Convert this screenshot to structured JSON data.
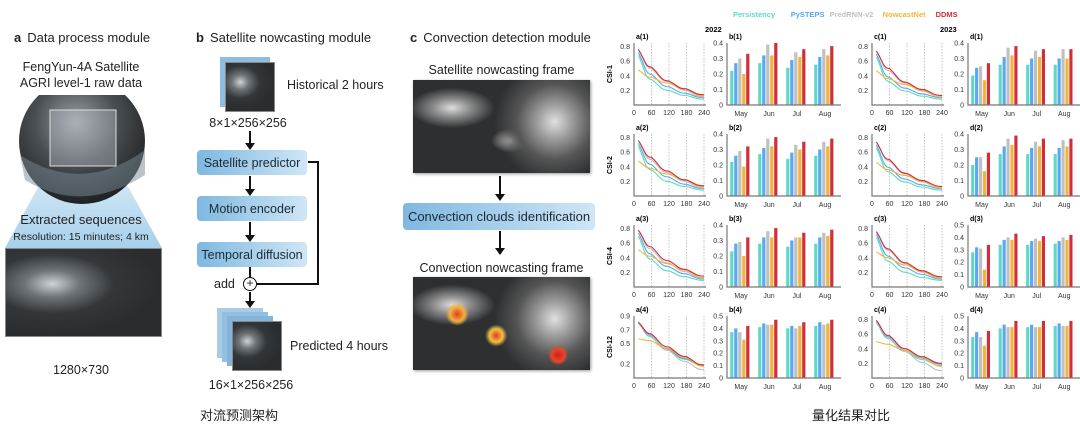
{
  "panel_a": {
    "letter": "a",
    "title": "Data process module",
    "source_line1": "FengYun-4A Satellite",
    "source_line2": "AGRI level-1 raw data",
    "extracted": "Extracted sequences",
    "resolution": "Resolution: 15 minutes; 4 km",
    "size": "1280×730"
  },
  "panel_b": {
    "letter": "b",
    "title": "Satellite nowcasting module",
    "input_label": "Historical 2 hours",
    "input_shape": "8×1×256×256",
    "steps": [
      "Satellite predictor",
      "Motion encoder",
      "Temporal diffusion"
    ],
    "add_label": "add",
    "add_symbol": "+",
    "output_label": "Predicted 4 hours",
    "output_shape": "16×1×256×256"
  },
  "panel_c": {
    "letter": "c",
    "title": "Convection detection module",
    "frame1": "Satellite nowcasting frame",
    "step": "Convection clouds identification",
    "frame2": "Convection nowcasting frame"
  },
  "captions": {
    "left": "对流预测架构",
    "right": "量化结果对比"
  },
  "chart_data": {
    "type": "line+bar grid",
    "legend": [
      {
        "name": "Persistency",
        "color": "#5fd8c6"
      },
      {
        "name": "PySTEPS",
        "color": "#5aa8f0"
      },
      {
        "name": "PredRNN-v2",
        "color": "#c0c0c0"
      },
      {
        "name": "NowcastNet",
        "color": "#f3b43a"
      },
      {
        "name": "DDMS",
        "color": "#d42d3a"
      }
    ],
    "legend_position": "top",
    "years": [
      "2022",
      "2023"
    ],
    "row_labels": [
      "CSI-1",
      "CSI-2",
      "CSI-4",
      "CSI-12"
    ],
    "line_x": [
      15,
      60,
      120,
      180,
      240
    ],
    "line_xticks": [
      "0",
      "60",
      "120",
      "180",
      "240"
    ],
    "bar_categories": [
      "May",
      "Jun",
      "Jul",
      "Aug"
    ],
    "rows": [
      {
        "a": {
          "title": "a(1)",
          "ylim": [
            0,
            0.85
          ],
          "yticks": [
            "0.2",
            "0.4",
            "0.6",
            "0.8"
          ],
          "ytick_values": [
            0.2,
            0.4,
            0.6,
            0.8
          ],
          "series": [
            [
              0.68,
              0.35,
              0.2,
              0.13,
              0.08
            ],
            [
              0.72,
              0.42,
              0.25,
              0.16,
              0.1
            ],
            [
              0.76,
              0.5,
              0.32,
              0.2,
              0.11
            ],
            [
              0.48,
              0.38,
              0.3,
              0.22,
              0.12
            ],
            [
              0.76,
              0.52,
              0.33,
              0.22,
              0.14
            ]
          ]
        },
        "b": {
          "title": "b(1)",
          "ylim": [
            0,
            0.4
          ],
          "yticks": [
            "0",
            "0.1",
            "0.2",
            "0.3",
            "0.4"
          ],
          "ytick_values": [
            0,
            0.1,
            0.2,
            0.3,
            0.4
          ],
          "values": [
            [
              0.22,
              0.27,
              0.3,
              0.2,
              0.33
            ],
            [
              0.27,
              0.32,
              0.39,
              0.32,
              0.4
            ],
            [
              0.24,
              0.29,
              0.34,
              0.31,
              0.36
            ],
            [
              0.26,
              0.31,
              0.36,
              0.32,
              0.38
            ]
          ]
        },
        "c": {
          "title": "c(1)",
          "ylim": [
            0,
            0.85
          ],
          "yticks": [
            "0.2",
            "0.4",
            "0.6",
            "0.8"
          ],
          "ytick_values": [
            0.2,
            0.4,
            0.6,
            0.8
          ],
          "series": [
            [
              0.66,
              0.32,
              0.19,
              0.12,
              0.08
            ],
            [
              0.7,
              0.38,
              0.23,
              0.15,
              0.1
            ],
            [
              0.74,
              0.47,
              0.3,
              0.19,
              0.11
            ],
            [
              0.47,
              0.36,
              0.28,
              0.2,
              0.11
            ],
            [
              0.74,
              0.5,
              0.31,
              0.21,
              0.13
            ]
          ]
        },
        "d": {
          "title": "d(1)",
          "ylim": [
            0,
            0.4
          ],
          "yticks": [
            "0",
            "0.1",
            "0.2",
            "0.3",
            "0.4"
          ],
          "ytick_values": [
            0,
            0.1,
            0.2,
            0.3,
            0.4
          ],
          "values": [
            [
              0.19,
              0.24,
              0.25,
              0.16,
              0.27
            ],
            [
              0.26,
              0.31,
              0.37,
              0.32,
              0.38
            ],
            [
              0.26,
              0.3,
              0.35,
              0.31,
              0.36
            ],
            [
              0.26,
              0.3,
              0.36,
              0.3,
              0.36
            ]
          ]
        }
      },
      {
        "a": {
          "title": "a(2)",
          "ylim": [
            0,
            0.85
          ],
          "yticks": [
            "0.2",
            "0.4",
            "0.6",
            "0.8"
          ],
          "ytick_values": [
            0.2,
            0.4,
            0.6,
            0.8
          ],
          "series": [
            [
              0.68,
              0.36,
              0.2,
              0.13,
              0.08
            ],
            [
              0.72,
              0.43,
              0.26,
              0.16,
              0.1
            ],
            [
              0.76,
              0.5,
              0.32,
              0.2,
              0.11
            ],
            [
              0.48,
              0.38,
              0.3,
              0.22,
              0.12
            ],
            [
              0.76,
              0.53,
              0.34,
              0.22,
              0.14
            ]
          ]
        },
        "b": {
          "title": "b(2)",
          "ylim": [
            0,
            0.4
          ],
          "yticks": [
            "0",
            "0.1",
            "0.2",
            "0.3",
            "0.4"
          ],
          "ytick_values": [
            0,
            0.1,
            0.2,
            0.3,
            0.4
          ],
          "values": [
            [
              0.22,
              0.26,
              0.29,
              0.19,
              0.32
            ],
            [
              0.27,
              0.31,
              0.37,
              0.32,
              0.38
            ],
            [
              0.24,
              0.28,
              0.33,
              0.3,
              0.35
            ],
            [
              0.26,
              0.3,
              0.35,
              0.32,
              0.37
            ]
          ]
        },
        "c": {
          "title": "c(2)",
          "ylim": [
            0,
            0.85
          ],
          "yticks": [
            "0.2",
            "0.4",
            "0.6",
            "0.8"
          ],
          "ytick_values": [
            0.2,
            0.4,
            0.6,
            0.8
          ],
          "series": [
            [
              0.66,
              0.33,
              0.19,
              0.12,
              0.08
            ],
            [
              0.7,
              0.39,
              0.23,
              0.15,
              0.1
            ],
            [
              0.74,
              0.48,
              0.3,
              0.19,
              0.11
            ],
            [
              0.46,
              0.36,
              0.28,
              0.2,
              0.11
            ],
            [
              0.74,
              0.5,
              0.31,
              0.21,
              0.13
            ]
          ]
        },
        "d": {
          "title": "d(2)",
          "ylim": [
            0,
            0.4
          ],
          "yticks": [
            "0",
            "0.1",
            "0.2",
            "0.3",
            "0.4"
          ],
          "ytick_values": [
            0,
            0.1,
            0.2,
            0.3,
            0.4
          ],
          "values": [
            [
              0.2,
              0.25,
              0.25,
              0.16,
              0.28
            ],
            [
              0.27,
              0.32,
              0.37,
              0.33,
              0.39
            ],
            [
              0.27,
              0.31,
              0.35,
              0.32,
              0.37
            ],
            [
              0.27,
              0.31,
              0.36,
              0.32,
              0.37
            ]
          ]
        }
      },
      {
        "a": {
          "title": "a(3)",
          "ylim": [
            0,
            0.85
          ],
          "yticks": [
            "0.2",
            "0.4",
            "0.6",
            "0.8"
          ],
          "ytick_values": [
            0.2,
            0.4,
            0.6,
            0.8
          ],
          "series": [
            [
              0.7,
              0.38,
              0.22,
              0.14,
              0.09
            ],
            [
              0.74,
              0.45,
              0.28,
              0.18,
              0.11
            ],
            [
              0.78,
              0.52,
              0.33,
              0.21,
              0.12
            ],
            [
              0.51,
              0.42,
              0.32,
              0.23,
              0.13
            ],
            [
              0.78,
              0.55,
              0.36,
              0.24,
              0.15
            ]
          ]
        },
        "b": {
          "title": "b(3)",
          "ylim": [
            0,
            0.4
          ],
          "yticks": [
            "0",
            "0.1",
            "0.2",
            "0.3",
            "0.4"
          ],
          "ytick_values": [
            0,
            0.1,
            0.2,
            0.3,
            0.4
          ],
          "values": [
            [
              0.23,
              0.28,
              0.29,
              0.2,
              0.32
            ],
            [
              0.28,
              0.32,
              0.36,
              0.32,
              0.38
            ],
            [
              0.26,
              0.3,
              0.32,
              0.32,
              0.35
            ],
            [
              0.28,
              0.32,
              0.35,
              0.33,
              0.37
            ]
          ]
        },
        "c": {
          "title": "c(3)",
          "ylim": [
            0,
            0.85
          ],
          "yticks": [
            "0.2",
            "0.4",
            "0.6",
            "0.8"
          ],
          "ytick_values": [
            0.2,
            0.4,
            0.6,
            0.8
          ],
          "series": [
            [
              0.68,
              0.35,
              0.2,
              0.13,
              0.09
            ],
            [
              0.72,
              0.42,
              0.26,
              0.17,
              0.11
            ],
            [
              0.75,
              0.5,
              0.32,
              0.2,
              0.12
            ],
            [
              0.48,
              0.4,
              0.3,
              0.21,
              0.12
            ],
            [
              0.76,
              0.52,
              0.33,
              0.22,
              0.14
            ]
          ]
        },
        "d": {
          "title": "d(3)",
          "ylim": [
            0,
            0.5
          ],
          "yticks": [
            "0",
            "0.1",
            "0.2",
            "0.3",
            "0.4",
            "0.5"
          ],
          "ytick_values": [
            0,
            0.1,
            0.2,
            0.3,
            0.4,
            0.5
          ],
          "values": [
            [
              0.28,
              0.32,
              0.31,
              0.14,
              0.34
            ],
            [
              0.34,
              0.38,
              0.4,
              0.38,
              0.43
            ],
            [
              0.34,
              0.37,
              0.39,
              0.37,
              0.41
            ],
            [
              0.35,
              0.37,
              0.4,
              0.38,
              0.42
            ]
          ]
        }
      },
      {
        "a": {
          "title": "a(4)",
          "ylim": [
            0,
            0.9
          ],
          "yticks": [
            "0.2",
            "0.5",
            "0.7",
            "0.9"
          ],
          "ytick_values": [
            0.2,
            0.5,
            0.7,
            0.9
          ],
          "series": [
            [
              0.8,
              0.6,
              0.4,
              0.27,
              0.18
            ],
            [
              0.8,
              0.62,
              0.42,
              0.28,
              0.19
            ],
            [
              0.8,
              0.63,
              0.4,
              0.24,
              0.12
            ],
            [
              0.57,
              0.54,
              0.43,
              0.3,
              0.17
            ],
            [
              0.81,
              0.64,
              0.45,
              0.31,
              0.19
            ]
          ]
        },
        "b": {
          "title": "b(4)",
          "ylim": [
            0,
            0.5
          ],
          "yticks": [
            "0",
            "0.1",
            "0.2",
            "0.3",
            "0.4",
            "0.5"
          ],
          "ytick_values": [
            0,
            0.1,
            0.2,
            0.3,
            0.4,
            0.5
          ],
          "values": [
            [
              0.37,
              0.4,
              0.37,
              0.31,
              0.42
            ],
            [
              0.41,
              0.44,
              0.43,
              0.43,
              0.47
            ],
            [
              0.4,
              0.42,
              0.4,
              0.42,
              0.45
            ],
            [
              0.42,
              0.45,
              0.43,
              0.44,
              0.47
            ]
          ]
        },
        "c": {
          "title": "c(4)",
          "ylim": [
            0,
            0.85
          ],
          "yticks": [
            "0.2",
            "0.4",
            "0.6",
            "0.8"
          ],
          "ytick_values": [
            0.2,
            0.4,
            0.6,
            0.8
          ],
          "series": [
            [
              0.76,
              0.54,
              0.36,
              0.25,
              0.17
            ],
            [
              0.78,
              0.56,
              0.38,
              0.27,
              0.19
            ],
            [
              0.78,
              0.57,
              0.36,
              0.21,
              0.1
            ],
            [
              0.5,
              0.46,
              0.38,
              0.28,
              0.16
            ],
            [
              0.79,
              0.58,
              0.4,
              0.29,
              0.2
            ]
          ]
        },
        "d": {
          "title": "d(4)",
          "ylim": [
            0,
            0.5
          ],
          "yticks": [
            "0",
            "0.1",
            "0.2",
            "0.3",
            "0.4",
            "0.5"
          ],
          "ytick_values": [
            0,
            0.1,
            0.2,
            0.3,
            0.4,
            0.5
          ],
          "values": [
            [
              0.33,
              0.37,
              0.33,
              0.26,
              0.38
            ],
            [
              0.4,
              0.43,
              0.41,
              0.41,
              0.46
            ],
            [
              0.41,
              0.43,
              0.41,
              0.41,
              0.46
            ],
            [
              0.42,
              0.44,
              0.42,
              0.42,
              0.46
            ]
          ]
        }
      }
    ]
  }
}
